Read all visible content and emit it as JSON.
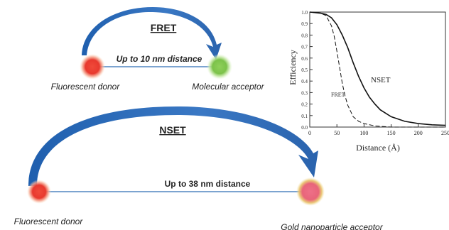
{
  "fret_panel": {
    "title": "FRET",
    "distance_label": "Up to 10 nm distance",
    "donor_label": "Fluorescent donor",
    "acceptor_label": "Molecular acceptor",
    "donor_color": "#e8392e",
    "acceptor_color": "#7cc24a",
    "arrow_color": "#2e6db5"
  },
  "nset_panel": {
    "title": "NSET",
    "distance_label": "Up to 38 nm distance",
    "donor_label": "Fluorescent donor",
    "acceptor_label": "Gold nanoparticle acceptor",
    "donor_color": "#e8392e",
    "acceptor_color": "#e8657a",
    "arrow_color": "#2e6db5"
  },
  "chart_data": {
    "type": "line",
    "xlabel": "Distance (Å)",
    "ylabel": "Efficiency",
    "xlim": [
      0,
      250
    ],
    "ylim": [
      0,
      1.0
    ],
    "xticks": [
      0,
      50,
      100,
      150,
      200,
      250
    ],
    "yticks": [
      0.0,
      0.1,
      0.2,
      0.3,
      0.4,
      0.5,
      0.6,
      0.7,
      0.8,
      0.9,
      1.0
    ],
    "ytick_labels": [
      "0.0",
      "0.1",
      "0.2",
      "0.3",
      "0.4",
      "0.5",
      "0.6",
      "0.7",
      "0.8",
      "0.9",
      "1.0"
    ],
    "series": [
      {
        "name": "NSET",
        "style": "solid",
        "x": [
          0,
          20,
          30,
          40,
          50,
          60,
          70,
          80,
          90,
          100,
          110,
          120,
          130,
          150,
          175,
          200,
          225,
          250
        ],
        "y": [
          1.0,
          0.99,
          0.98,
          0.95,
          0.89,
          0.8,
          0.69,
          0.56,
          0.44,
          0.34,
          0.26,
          0.2,
          0.15,
          0.09,
          0.05,
          0.03,
          0.02,
          0.015
        ]
      },
      {
        "name": "FRET",
        "style": "dashed",
        "x": [
          0,
          20,
          30,
          40,
          45,
          50,
          55,
          60,
          65,
          70,
          80,
          90,
          100,
          120,
          150,
          250
        ],
        "y": [
          1.0,
          0.99,
          0.97,
          0.88,
          0.79,
          0.66,
          0.52,
          0.38,
          0.27,
          0.19,
          0.09,
          0.05,
          0.03,
          0.01,
          0.0,
          0.0
        ]
      }
    ]
  }
}
